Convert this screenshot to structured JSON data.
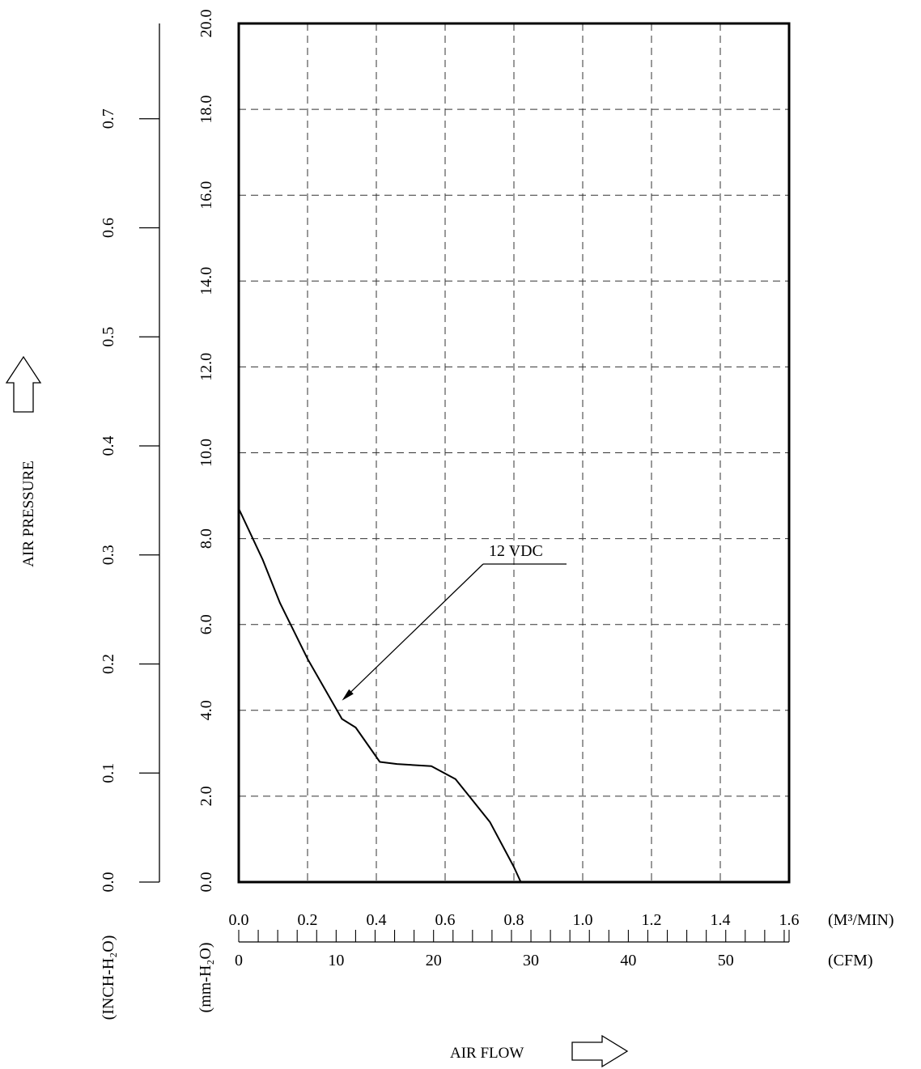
{
  "chart_data": {
    "type": "line",
    "ylabel": "AIR PRESSURE",
    "xlabel": "AIR FLOW",
    "x_unit_primary": "(M³/MIN)",
    "x_unit_secondary": "(CFM)",
    "y_unit_primary": "(mm-H₂O)",
    "y_unit_secondary": "(INCH-H₂O)",
    "xlim": [
      0,
      1.6
    ],
    "ylim": [
      0,
      20.0
    ],
    "x_ticks": [
      "0.0",
      "0.2",
      "0.4",
      "0.6",
      "0.8",
      "1.0",
      "1.2",
      "1.4",
      "1.6"
    ],
    "y_ticks": [
      "0.0",
      "2.0",
      "4.0",
      "6.0",
      "8.0",
      "10.0",
      "12.0",
      "14.0",
      "16.0",
      "18.0",
      "20.0"
    ],
    "cfm_ticks": [
      "0",
      "10",
      "20",
      "30",
      "40",
      "50"
    ],
    "inch_ticks": [
      "0.0",
      "0.1",
      "0.2",
      "0.3",
      "0.4",
      "0.5",
      "0.6",
      "0.7"
    ],
    "grid": true,
    "series": [
      {
        "name": "12 VDC",
        "x": [
          0.0,
          0.07,
          0.12,
          0.2,
          0.3,
          0.34,
          0.41,
          0.46,
          0.56,
          0.63,
          0.67,
          0.73,
          0.8,
          0.82
        ],
        "y": [
          8.7,
          7.5,
          6.5,
          5.2,
          3.8,
          3.6,
          2.8,
          2.75,
          2.7,
          2.4,
          2.0,
          1.4,
          0.35,
          0.0
        ]
      }
    ],
    "annotations": [
      {
        "text": "12 VDC",
        "points_to": {
          "x": 0.3,
          "y": 4.0
        }
      }
    ]
  }
}
